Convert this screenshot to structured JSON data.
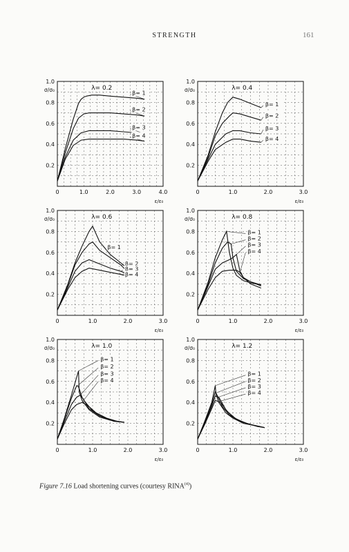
{
  "page": {
    "header": "STRENGTH",
    "page_number": "161",
    "caption_label": "Figure 7.16",
    "caption_text": " Load shortening curves (courtesy RINA",
    "caption_ref": "(4)",
    "caption_close": ")"
  },
  "chart_data": [
    {
      "type": "line",
      "title": "λ= 0.2",
      "ylabel": "σ/σ₀",
      "xlabel": "ε/ε₀",
      "xlim": [
        0,
        4.0
      ],
      "ylim": [
        0,
        1.0
      ],
      "xticks": [
        "0",
        "1.0",
        "2.0",
        "3.0",
        "4.0"
      ],
      "yticks": [
        "0.2",
        "0.4",
        "0.6",
        "0.8",
        "1.0"
      ],
      "grid": true,
      "series": [
        {
          "name": "β= 1",
          "x": [
            0,
            0.3,
            0.6,
            0.8,
            0.9,
            1.0,
            1.1,
            1.3,
            1.6,
            2.0,
            2.5,
            3.0,
            3.3
          ],
          "y": [
            0.05,
            0.36,
            0.64,
            0.79,
            0.83,
            0.85,
            0.86,
            0.87,
            0.87,
            0.86,
            0.85,
            0.84,
            0.83
          ]
        },
        {
          "name": "β= 2",
          "x": [
            0,
            0.3,
            0.6,
            0.8,
            1.0,
            1.2,
            1.5,
            2.0,
            2.5,
            3.0,
            3.3
          ],
          "y": [
            0.05,
            0.32,
            0.55,
            0.65,
            0.69,
            0.7,
            0.7,
            0.7,
            0.69,
            0.68,
            0.67
          ]
        },
        {
          "name": "β= 3",
          "x": [
            0,
            0.3,
            0.6,
            0.9,
            1.2,
            1.5,
            2.0,
            2.5,
            3.0,
            3.3
          ],
          "y": [
            0.05,
            0.28,
            0.44,
            0.51,
            0.53,
            0.53,
            0.53,
            0.52,
            0.51,
            0.5
          ]
        },
        {
          "name": "β= 4",
          "x": [
            0,
            0.3,
            0.6,
            0.9,
            1.2,
            1.5,
            2.0,
            2.5,
            3.0,
            3.3
          ],
          "y": [
            0.05,
            0.26,
            0.39,
            0.44,
            0.45,
            0.45,
            0.45,
            0.45,
            0.44,
            0.43
          ]
        }
      ]
    },
    {
      "type": "line",
      "title": "λ= 0.4",
      "ylabel": "σ/σ₀",
      "xlabel": "ε/ε₀",
      "xlim": [
        0,
        3.0
      ],
      "ylim": [
        0,
        1.0
      ],
      "xticks": [
        "0",
        "1.0",
        "2.0",
        "3.0"
      ],
      "yticks": [
        "0.2",
        "0.4",
        "0.6",
        "0.8",
        "1.0"
      ],
      "grid": true,
      "series": [
        {
          "name": "β= 1",
          "x": [
            0,
            0.3,
            0.5,
            0.7,
            0.85,
            1.0,
            1.2,
            1.5,
            1.8
          ],
          "y": [
            0.05,
            0.3,
            0.52,
            0.7,
            0.8,
            0.85,
            0.83,
            0.79,
            0.75
          ]
        },
        {
          "name": "β= 2",
          "x": [
            0,
            0.3,
            0.5,
            0.7,
            0.9,
            1.0,
            1.2,
            1.5,
            1.8
          ],
          "y": [
            0.05,
            0.28,
            0.48,
            0.6,
            0.67,
            0.7,
            0.69,
            0.66,
            0.63
          ]
        },
        {
          "name": "β= 3",
          "x": [
            0,
            0.3,
            0.5,
            0.8,
            1.0,
            1.2,
            1.5,
            1.8
          ],
          "y": [
            0.05,
            0.26,
            0.4,
            0.5,
            0.53,
            0.53,
            0.51,
            0.5
          ]
        },
        {
          "name": "β= 4",
          "x": [
            0,
            0.3,
            0.5,
            0.8,
            1.0,
            1.2,
            1.5,
            1.8
          ],
          "y": [
            0.05,
            0.24,
            0.35,
            0.42,
            0.45,
            0.45,
            0.43,
            0.42
          ]
        }
      ]
    },
    {
      "type": "line",
      "title": "λ= 0.6",
      "ylabel": "σ/σ₀",
      "xlabel": "ε/ε₀",
      "xlim": [
        0,
        3.0
      ],
      "ylim": [
        0,
        1.0
      ],
      "xticks": [
        "0",
        "1.0",
        "2.0",
        "3.0"
      ],
      "yticks": [
        "0.2",
        "0.4",
        "0.6",
        "0.8",
        "1.0"
      ],
      "grid": true,
      "series": [
        {
          "name": "β= 1",
          "x": [
            0,
            0.3,
            0.5,
            0.7,
            0.9,
            1.0,
            1.2,
            1.5,
            1.8,
            1.95
          ],
          "y": [
            0.05,
            0.3,
            0.5,
            0.66,
            0.8,
            0.85,
            0.7,
            0.58,
            0.5,
            0.46
          ]
        },
        {
          "name": "β= 2",
          "x": [
            0,
            0.3,
            0.5,
            0.7,
            0.9,
            1.0,
            1.2,
            1.5,
            1.8,
            1.95
          ],
          "y": [
            0.05,
            0.29,
            0.48,
            0.6,
            0.68,
            0.7,
            0.62,
            0.55,
            0.48,
            0.43
          ]
        },
        {
          "name": "β= 3",
          "x": [
            0,
            0.3,
            0.5,
            0.7,
            0.9,
            1.2,
            1.5,
            1.8,
            1.95
          ],
          "y": [
            0.05,
            0.27,
            0.42,
            0.5,
            0.53,
            0.49,
            0.45,
            0.42,
            0.4
          ]
        },
        {
          "name": "β= 4",
          "x": [
            0,
            0.3,
            0.5,
            0.7,
            0.9,
            1.2,
            1.5,
            1.8,
            1.95
          ],
          "y": [
            0.05,
            0.25,
            0.36,
            0.42,
            0.45,
            0.43,
            0.41,
            0.39,
            0.38
          ]
        }
      ]
    },
    {
      "type": "line",
      "title": "λ= 0.8",
      "ylabel": "σ/σ₀",
      "xlabel": "ε/ε₀",
      "xlim": [
        0,
        3.0
      ],
      "ylim": [
        0,
        1.0
      ],
      "xticks": [
        "0",
        "1.0",
        "2.0",
        "3.0"
      ],
      "yticks": [
        "0.2",
        "0.4",
        "0.6",
        "0.8",
        "1.0"
      ],
      "grid": true,
      "series": [
        {
          "name": "β= 1",
          "x": [
            0,
            0.3,
            0.5,
            0.7,
            0.82,
            0.9,
            1.0,
            1.1,
            1.3,
            1.5,
            1.8
          ],
          "y": [
            0.05,
            0.32,
            0.55,
            0.72,
            0.8,
            0.6,
            0.45,
            0.38,
            0.33,
            0.31,
            0.29
          ]
        },
        {
          "name": "β= 2",
          "x": [
            0,
            0.3,
            0.5,
            0.7,
            0.85,
            0.95,
            1.0,
            1.1,
            1.3,
            1.5,
            1.8
          ],
          "y": [
            0.05,
            0.3,
            0.5,
            0.64,
            0.7,
            0.68,
            0.55,
            0.42,
            0.35,
            0.32,
            0.29
          ]
        },
        {
          "name": "β= 3",
          "x": [
            0,
            0.3,
            0.5,
            0.7,
            0.9,
            1.0,
            1.1,
            1.2,
            1.3,
            1.5,
            1.8
          ],
          "y": [
            0.05,
            0.28,
            0.44,
            0.5,
            0.53,
            0.55,
            0.58,
            0.42,
            0.36,
            0.32,
            0.28
          ]
        },
        {
          "name": "β= 4",
          "x": [
            0,
            0.3,
            0.5,
            0.7,
            0.9,
            1.1,
            1.2,
            1.3,
            1.5,
            1.8
          ],
          "y": [
            0.05,
            0.25,
            0.36,
            0.42,
            0.43,
            0.43,
            0.41,
            0.36,
            0.3,
            0.26
          ]
        }
      ]
    },
    {
      "type": "line",
      "title": "λ= 1.0",
      "ylabel": "σ/σ₀",
      "xlabel": "ε/ε₀",
      "xlim": [
        0,
        3.0
      ],
      "ylim": [
        0,
        1.0
      ],
      "xticks": [
        "0",
        "1.0",
        "2.0",
        "3.0"
      ],
      "yticks": [
        "0.2",
        "0.4",
        "0.6",
        "0.8",
        "1.0"
      ],
      "grid": true,
      "series": [
        {
          "name": "β= 1",
          "x": [
            0,
            0.2,
            0.4,
            0.6,
            0.62,
            0.7,
            0.9,
            1.2,
            1.5,
            1.9
          ],
          "y": [
            0.05,
            0.25,
            0.47,
            0.7,
            0.5,
            0.42,
            0.33,
            0.26,
            0.23,
            0.21
          ]
        },
        {
          "name": "β= 2",
          "x": [
            0,
            0.2,
            0.4,
            0.55,
            0.6,
            0.7,
            0.9,
            1.2,
            1.5,
            1.9
          ],
          "y": [
            0.05,
            0.24,
            0.44,
            0.56,
            0.55,
            0.45,
            0.34,
            0.27,
            0.23,
            0.21
          ]
        },
        {
          "name": "β= 3",
          "x": [
            0,
            0.2,
            0.4,
            0.55,
            0.65,
            0.8,
            1.0,
            1.3,
            1.6,
            1.9
          ],
          "y": [
            0.05,
            0.22,
            0.38,
            0.45,
            0.47,
            0.4,
            0.32,
            0.26,
            0.22,
            0.21
          ]
        },
        {
          "name": "β= 4",
          "x": [
            0,
            0.2,
            0.4,
            0.55,
            0.7,
            0.9,
            1.1,
            1.4,
            1.7,
            1.9
          ],
          "y": [
            0.05,
            0.2,
            0.33,
            0.38,
            0.4,
            0.36,
            0.3,
            0.25,
            0.22,
            0.21
          ]
        }
      ]
    },
    {
      "type": "line",
      "title": "λ= 1.2",
      "ylabel": "σ/σ₀",
      "xlabel": "ε/ε₀",
      "xlim": [
        0,
        3.0
      ],
      "ylim": [
        0,
        1.0
      ],
      "xticks": [
        "0",
        "1.0",
        "2.0",
        "3.0"
      ],
      "yticks": [
        "0.2",
        "0.4",
        "0.6",
        "0.8",
        "1.0"
      ],
      "grid": true,
      "series": [
        {
          "name": "β= 1",
          "x": [
            0,
            0.2,
            0.4,
            0.5,
            0.52,
            0.6,
            0.8,
            1.0,
            1.3,
            1.6,
            1.9
          ],
          "y": [
            0.05,
            0.22,
            0.4,
            0.56,
            0.48,
            0.4,
            0.3,
            0.25,
            0.2,
            0.18,
            0.16
          ]
        },
        {
          "name": "β= 2",
          "x": [
            0,
            0.2,
            0.4,
            0.5,
            0.55,
            0.7,
            0.9,
            1.2,
            1.5,
            1.9
          ],
          "y": [
            0.05,
            0.21,
            0.38,
            0.5,
            0.47,
            0.36,
            0.28,
            0.22,
            0.19,
            0.16
          ]
        },
        {
          "name": "β= 3",
          "x": [
            0,
            0.2,
            0.4,
            0.5,
            0.6,
            0.8,
            1.0,
            1.3,
            1.6,
            1.9
          ],
          "y": [
            0.05,
            0.2,
            0.36,
            0.46,
            0.45,
            0.33,
            0.26,
            0.21,
            0.18,
            0.16
          ]
        },
        {
          "name": "β= 4",
          "x": [
            0,
            0.2,
            0.4,
            0.5,
            0.65,
            0.85,
            1.1,
            1.4,
            1.7,
            1.9
          ],
          "y": [
            0.05,
            0.19,
            0.34,
            0.42,
            0.4,
            0.31,
            0.24,
            0.2,
            0.17,
            0.16
          ]
        }
      ]
    }
  ]
}
